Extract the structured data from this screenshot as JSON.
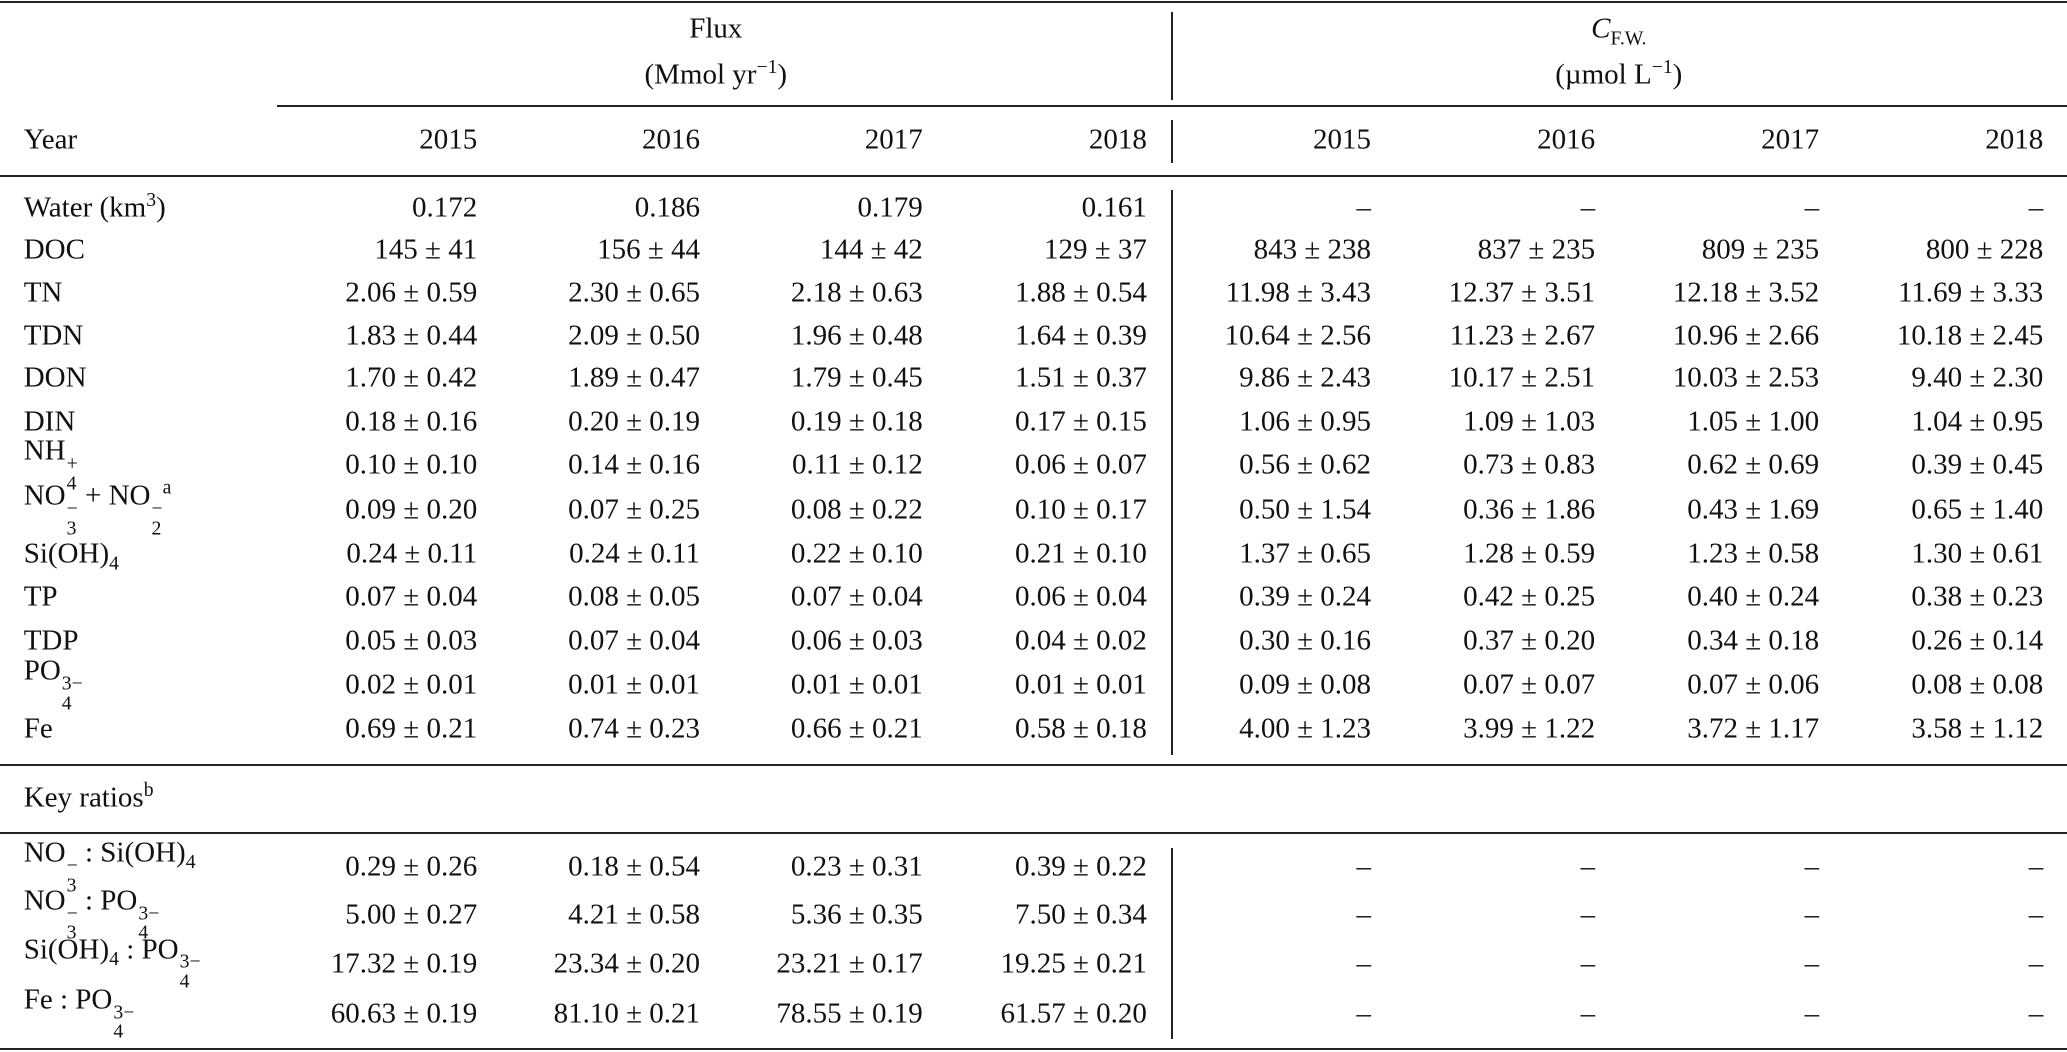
{
  "table": {
    "groups": [
      {
        "title": [
          "Flux"
        ],
        "unit": [
          "(Mmol yr",
          {
            "sup": "−1"
          },
          ")"
        ]
      },
      {
        "title": [
          {
            "it": "C"
          },
          {
            "sub": "F.W."
          }
        ],
        "unit": [
          "(µmol L",
          {
            "sup": "−1"
          },
          ")"
        ]
      }
    ],
    "header": {
      "label": [
        "Year"
      ],
      "years": [
        "2015",
        "2016",
        "2017",
        "2018",
        "2015",
        "2016",
        "2017",
        "2018"
      ]
    },
    "rows": [
      {
        "label": [
          "Water (km",
          {
            "sup": "3"
          },
          ")"
        ],
        "cells": [
          "0.172",
          "0.186",
          "0.179",
          "0.161",
          "–",
          "–",
          "–",
          "–"
        ]
      },
      {
        "label": [
          "DOC"
        ],
        "cells": [
          "145 ± 41",
          "156 ± 44",
          "144 ± 42",
          "129 ± 37",
          "843 ± 238",
          "837 ± 235",
          "809 ± 235",
          "800 ± 228"
        ]
      },
      {
        "label": [
          "TN"
        ],
        "cells": [
          "2.06 ± 0.59",
          "2.30 ± 0.65",
          "2.18 ± 0.63",
          "1.88 ± 0.54",
          "11.98 ± 3.43",
          "12.37 ± 3.51",
          "12.18 ± 3.52",
          "11.69 ± 3.33"
        ]
      },
      {
        "label": [
          "TDN"
        ],
        "cells": [
          "1.83 ± 0.44",
          "2.09 ± 0.50",
          "1.96 ± 0.48",
          "1.64 ± 0.39",
          "10.64 ± 2.56",
          "11.23 ± 2.67",
          "10.96 ± 2.66",
          "10.18 ± 2.45"
        ]
      },
      {
        "label": [
          "DON"
        ],
        "cells": [
          "1.70 ± 0.42",
          "1.89 ± 0.47",
          "1.79 ± 0.45",
          "1.51 ± 0.37",
          "9.86 ± 2.43",
          "10.17 ± 2.51",
          "10.03 ± 2.53",
          "9.40 ± 2.30"
        ]
      },
      {
        "label": [
          "DIN"
        ],
        "cells": [
          "0.18 ± 0.16",
          "0.20 ± 0.19",
          "0.19 ± 0.18",
          "0.17 ± 0.15",
          "1.06 ± 0.95",
          "1.09 ± 1.03",
          "1.05 ± 1.00",
          "1.04 ± 0.95"
        ]
      },
      {
        "label": [
          "NH",
          {
            "sub": "4",
            "sup": "+"
          }
        ],
        "cells": [
          "0.10 ± 0.10",
          "0.14 ± 0.16",
          "0.11 ± 0.12",
          "0.06 ± 0.07",
          "0.56 ± 0.62",
          "0.73 ± 0.83",
          "0.62 ± 0.69",
          "0.39 ± 0.45"
        ]
      },
      {
        "label": [
          "NO",
          {
            "sub": "3",
            "sup": "−"
          },
          " + NO",
          {
            "sub": "2",
            "sup": "−"
          },
          {
            "sup": "a"
          }
        ],
        "cells": [
          "0.09 ± 0.20",
          "0.07 ± 0.25",
          "0.08 ± 0.22",
          "0.10 ± 0.17",
          "0.50 ± 1.54",
          "0.36 ± 1.86",
          "0.43 ± 1.69",
          "0.65 ± 1.40"
        ]
      },
      {
        "label": [
          "Si(OH)",
          {
            "sub": "4"
          }
        ],
        "cells": [
          "0.24 ± 0.11",
          "0.24 ± 0.11",
          "0.22 ± 0.10",
          "0.21 ± 0.10",
          "1.37 ± 0.65",
          "1.28 ± 0.59",
          "1.23 ± 0.58",
          "1.30 ± 0.61"
        ]
      },
      {
        "label": [
          "TP"
        ],
        "cells": [
          "0.07 ± 0.04",
          "0.08 ± 0.05",
          "0.07 ± 0.04",
          "0.06 ± 0.04",
          "0.39 ± 0.24",
          "0.42 ± 0.25",
          "0.40 ± 0.24",
          "0.38 ± 0.23"
        ]
      },
      {
        "label": [
          "TDP"
        ],
        "cells": [
          "0.05 ± 0.03",
          "0.07 ± 0.04",
          "0.06 ± 0.03",
          "0.04 ± 0.02",
          "0.30 ± 0.16",
          "0.37 ± 0.20",
          "0.34 ± 0.18",
          "0.26 ± 0.14"
        ]
      },
      {
        "label": [
          "PO",
          {
            "sub": "4",
            "sup": "3−"
          }
        ],
        "cells": [
          "0.02 ± 0.01",
          "0.01 ± 0.01",
          "0.01 ± 0.01",
          "0.01 ± 0.01",
          "0.09 ± 0.08",
          "0.07 ± 0.07",
          "0.07 ± 0.06",
          "0.08 ± 0.08"
        ]
      },
      {
        "label": [
          "Fe"
        ],
        "cells": [
          "0.69 ± 0.21",
          "0.74 ± 0.23",
          "0.66 ± 0.21",
          "0.58 ± 0.18",
          "4.00 ± 1.23",
          "3.99 ± 1.22",
          "3.72 ± 1.17",
          "3.58 ± 1.12"
        ]
      }
    ],
    "section": [
      "Key ratios",
      {
        "sup": "b"
      }
    ],
    "ratio_rows": [
      {
        "label": [
          "NO",
          {
            "sub": "3",
            "sup": "−"
          },
          " : Si(OH)",
          {
            "sub": "4"
          }
        ],
        "cells": [
          "0.29 ± 0.26",
          "0.18 ± 0.54",
          "0.23 ± 0.31",
          "0.39 ± 0.22",
          "–",
          "–",
          "–",
          "–"
        ]
      },
      {
        "label": [
          "NO",
          {
            "sub": "3",
            "sup": "−"
          },
          " : PO",
          {
            "sub": "4",
            "sup": "3−"
          }
        ],
        "cells": [
          "5.00 ± 0.27",
          "4.21 ± 0.58",
          "5.36 ± 0.35",
          "7.50 ± 0.34",
          "–",
          "–",
          "–",
          "–"
        ]
      },
      {
        "label": [
          "Si(OH)",
          {
            "sub": "4"
          },
          " : PO",
          {
            "sub": "4",
            "sup": "3−"
          }
        ],
        "cells": [
          "17.32 ± 0.19",
          "23.34 ± 0.20",
          "23.21 ± 0.17",
          "19.25 ± 0.21",
          "–",
          "–",
          "–",
          "–"
        ]
      },
      {
        "label": [
          "Fe : PO",
          {
            "sub": "4",
            "sup": "3−"
          }
        ],
        "cells": [
          "60.63 ± 0.19",
          "81.10 ± 0.21",
          "78.55 ± 0.19",
          "61.57 ± 0.20",
          "–",
          "–",
          "–",
          "–"
        ]
      }
    ]
  }
}
